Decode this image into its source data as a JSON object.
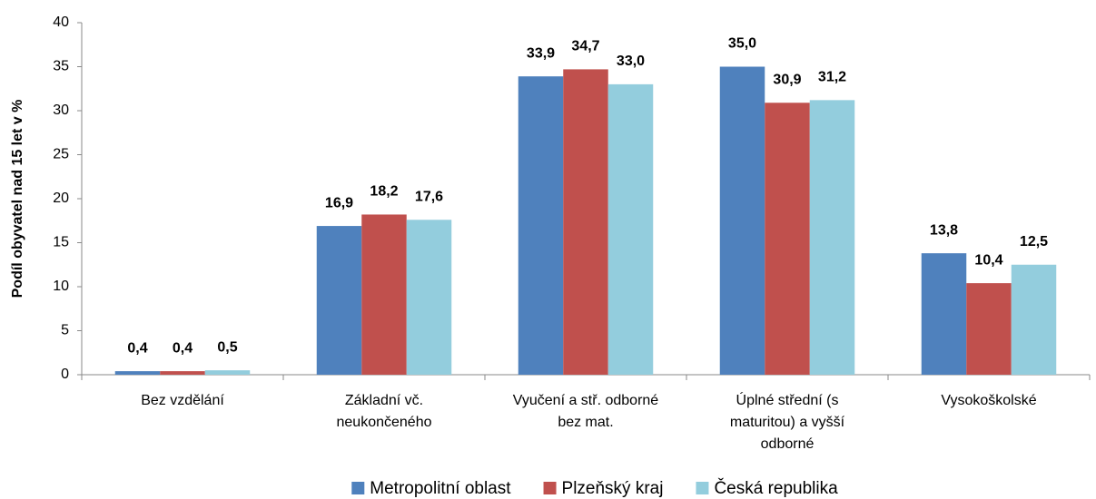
{
  "chart_data": {
    "type": "bar",
    "y_label": "Podíl obyvatel nad 15 let v %",
    "categories": [
      "Bez vzdělání",
      "Základní vč. neukončeného",
      "Vyučení a stř. odborné bez mat.",
      "Úplné střední (s maturitou) a vyšší odborné",
      "Vysokoškolské"
    ],
    "series": [
      {
        "name": "Metropolitní oblast",
        "color": "#4f81bd",
        "values": [
          0.4,
          16.9,
          33.9,
          35.0,
          13.8
        ],
        "value_labels": [
          "0,4",
          "16,9",
          "33,9",
          "35,0",
          "13,8"
        ]
      },
      {
        "name": "Plzeňský kraj",
        "color": "#c0504d",
        "values": [
          0.4,
          18.2,
          34.7,
          30.9,
          10.4
        ],
        "value_labels": [
          "0,4",
          "18,2",
          "34,7",
          "30,9",
          "10,4"
        ]
      },
      {
        "name": "Česká republika",
        "color": "#93cddd",
        "values": [
          0.5,
          17.6,
          33.0,
          31.2,
          12.5
        ],
        "value_labels": [
          "0,5",
          "17,6",
          "33,0",
          "31,2",
          "12,5"
        ]
      }
    ],
    "ylim": [
      0,
      40
    ],
    "yticks": [
      0,
      5,
      10,
      15,
      20,
      25,
      30,
      35,
      40
    ],
    "grid": false,
    "legend": "bottom"
  }
}
